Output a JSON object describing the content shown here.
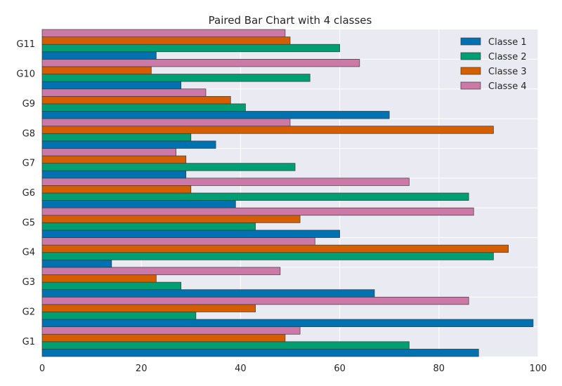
{
  "chart_data": {
    "type": "bar",
    "orientation": "horizontal",
    "title": "Paired Bar Chart with 4 classes",
    "xlabel": "",
    "ylabel": "",
    "categories": [
      "G1",
      "G2",
      "G3",
      "G4",
      "G5",
      "G6",
      "G7",
      "G8",
      "G9",
      "G10",
      "G11"
    ],
    "series": [
      {
        "name": "Classe 1",
        "color": "#0072b2",
        "values": [
          88,
          99,
          67,
          14,
          60,
          39,
          29,
          35,
          70,
          28,
          23
        ]
      },
      {
        "name": "Classe 2",
        "color": "#009e73",
        "values": [
          74,
          31,
          28,
          91,
          43,
          86,
          51,
          30,
          41,
          54,
          60
        ]
      },
      {
        "name": "Classe 3",
        "color": "#d55e00",
        "values": [
          49,
          43,
          23,
          94,
          52,
          30,
          29,
          91,
          38,
          22,
          50
        ]
      },
      {
        "name": "Classe 4",
        "color": "#cc79a7",
        "values": [
          52,
          86,
          48,
          55,
          87,
          74,
          27,
          50,
          33,
          64,
          49
        ]
      }
    ],
    "xlim": [
      0,
      100
    ],
    "xticks": [
      0,
      20,
      40,
      60,
      80,
      100
    ],
    "grid": true,
    "legend_position": "top-right",
    "background_color": "#eaeaf2",
    "grid_color": "#ffffff"
  }
}
